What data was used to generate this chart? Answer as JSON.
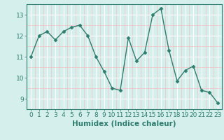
{
  "x": [
    0,
    1,
    2,
    3,
    4,
    5,
    6,
    7,
    8,
    9,
    10,
    11,
    12,
    13,
    14,
    15,
    16,
    17,
    18,
    19,
    20,
    21,
    22,
    23
  ],
  "y": [
    11.0,
    12.0,
    12.2,
    11.8,
    12.2,
    12.4,
    12.5,
    12.0,
    11.0,
    10.3,
    9.5,
    9.4,
    11.9,
    10.8,
    11.2,
    13.0,
    13.3,
    11.3,
    9.85,
    10.35,
    10.55,
    9.4,
    9.3,
    8.8
  ],
  "line_color": "#2e7d6e",
  "marker": "D",
  "marker_size": 2.5,
  "bg_color": "#d5efed",
  "grid_color_major": "#ffffff",
  "grid_color_minor": "#f4c0c0",
  "xlabel": "Humidex (Indice chaleur)",
  "ylim": [
    9,
    13.5
  ],
  "xlim": [
    -0.5,
    23.5
  ],
  "yticks": [
    9,
    10,
    11,
    12,
    13
  ],
  "xticks": [
    0,
    1,
    2,
    3,
    4,
    5,
    6,
    7,
    8,
    9,
    10,
    11,
    12,
    13,
    14,
    15,
    16,
    17,
    18,
    19,
    20,
    21,
    22,
    23
  ],
  "tick_fontsize": 6.5,
  "label_fontsize": 7.5
}
